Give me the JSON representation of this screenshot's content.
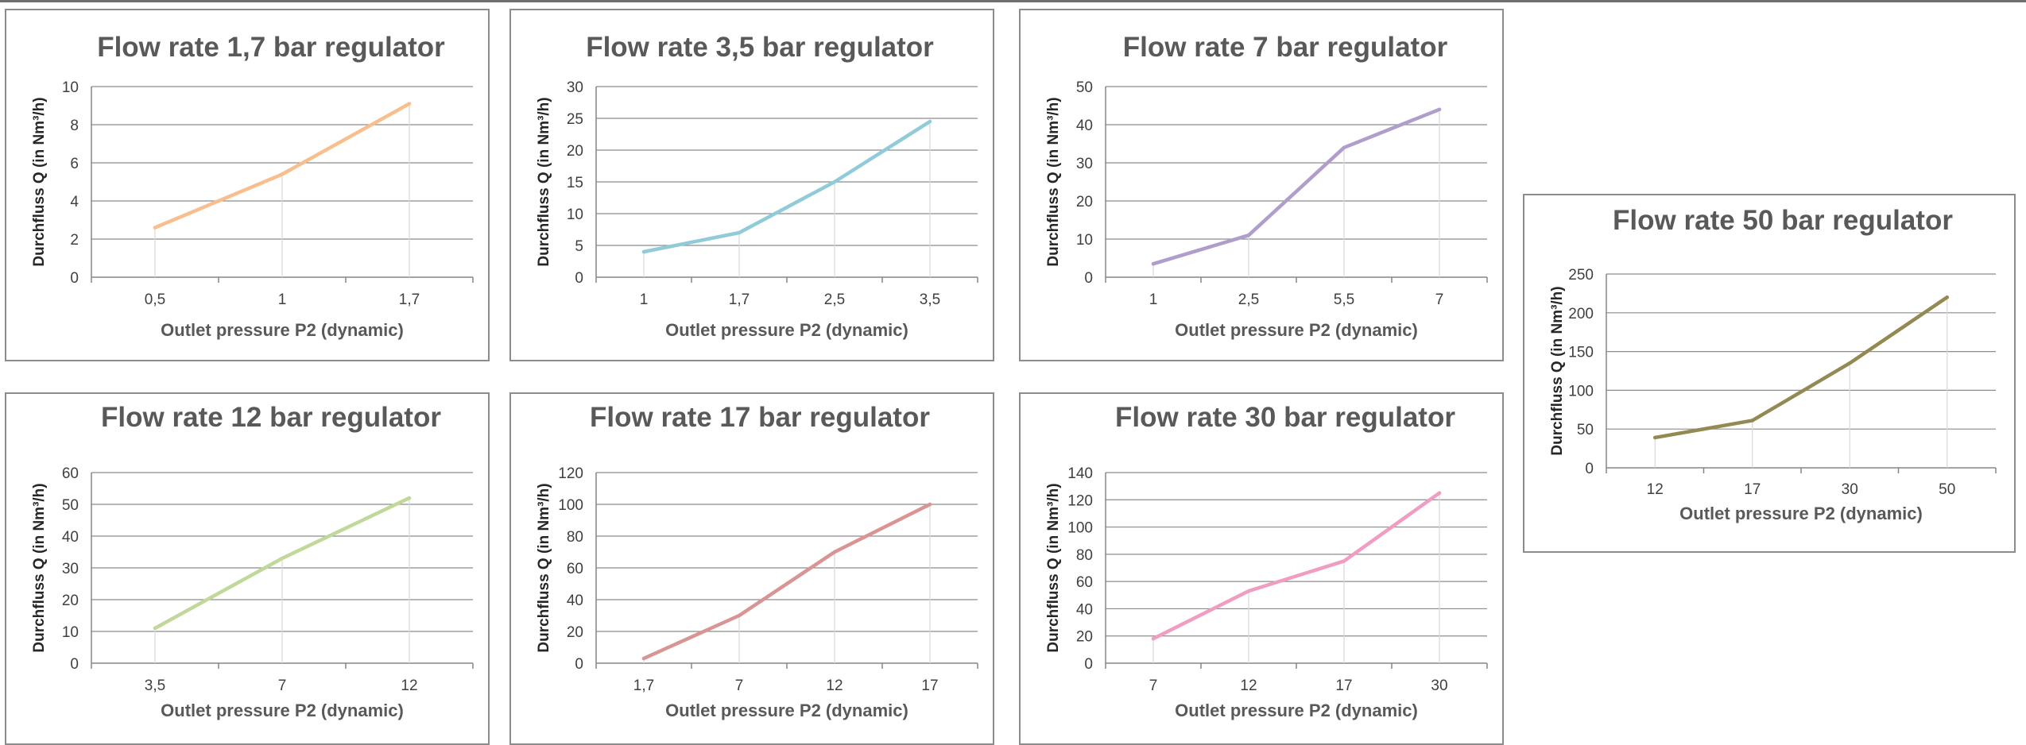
{
  "chart_data": [
    {
      "type": "line",
      "title": "Flow rate 1,7 bar regulator",
      "xlabel": "Outlet pressure P2 (dynamic)",
      "ylabel": "Durchfluss Q (in Nm³/h)",
      "categories": [
        "0,5",
        "1",
        "1,7"
      ],
      "values": [
        2.6,
        5.4,
        9.1
      ],
      "ylim": [
        0,
        10
      ],
      "ytick_step": 2,
      "color": "#f9be8d",
      "grid": true
    },
    {
      "type": "line",
      "title": "Flow rate 3,5 bar regulator",
      "xlabel": "Outlet pressure P2 (dynamic)",
      "ylabel": "Durchfluss Q (in Nm³/h)",
      "categories": [
        "1",
        "1,7",
        "2,5",
        "3,5"
      ],
      "values": [
        4,
        7,
        15,
        24.5
      ],
      "ylim": [
        0,
        30
      ],
      "ytick_step": 5,
      "color": "#8fcbd8",
      "grid": true
    },
    {
      "type": "line",
      "title": "Flow rate 7 bar regulator",
      "xlabel": "Outlet pressure P2 (dynamic)",
      "ylabel": "Durchfluss Q (in Nm³/h)",
      "categories": [
        "1",
        "2,5",
        "5,5",
        "7"
      ],
      "values": [
        3.5,
        11,
        34,
        44
      ],
      "ylim": [
        0,
        50
      ],
      "ytick_step": 10,
      "color": "#b09dcb",
      "grid": true
    },
    {
      "type": "line",
      "title": "Flow rate 12 bar regulator",
      "xlabel": "Outlet pressure P2 (dynamic)",
      "ylabel": "Durchfluss Q (in Nm³/h)",
      "categories": [
        "3,5",
        "7",
        "12"
      ],
      "values": [
        11,
        33,
        52
      ],
      "ylim": [
        0,
        60
      ],
      "ytick_step": 10,
      "color": "#c2d89b",
      "grid": true
    },
    {
      "type": "line",
      "title": "Flow rate 17 bar regulator",
      "xlabel": "Outlet pressure P2 (dynamic)",
      "ylabel": "Durchfluss Q (in Nm³/h)",
      "categories": [
        "1,7",
        "7",
        "12",
        "17"
      ],
      "values": [
        3,
        30,
        70,
        100
      ],
      "ylim": [
        0,
        120
      ],
      "ytick_step": 20,
      "color": "#d99594",
      "grid": true
    },
    {
      "type": "line",
      "title": "Flow rate 30 bar regulator",
      "xlabel": "Outlet pressure P2 (dynamic)",
      "ylabel": "Durchfluss Q (in Nm³/h)",
      "categories": [
        "7",
        "12",
        "17",
        "30"
      ],
      "values": [
        18,
        53,
        75,
        125
      ],
      "ylim": [
        0,
        140
      ],
      "ytick_step": 20,
      "color": "#f09dc3",
      "grid": true
    },
    {
      "type": "line",
      "title": "Flow rate 50 bar regulator",
      "xlabel": "Outlet pressure P2 (dynamic)",
      "ylabel": "Durchfluss Q (in Nm³/h)",
      "categories": [
        "12",
        "17",
        "30",
        "50"
      ],
      "values": [
        39,
        61,
        135,
        220
      ],
      "ylim": [
        0,
        250
      ],
      "ytick_step": 50,
      "color": "#938953",
      "grid": true
    }
  ]
}
